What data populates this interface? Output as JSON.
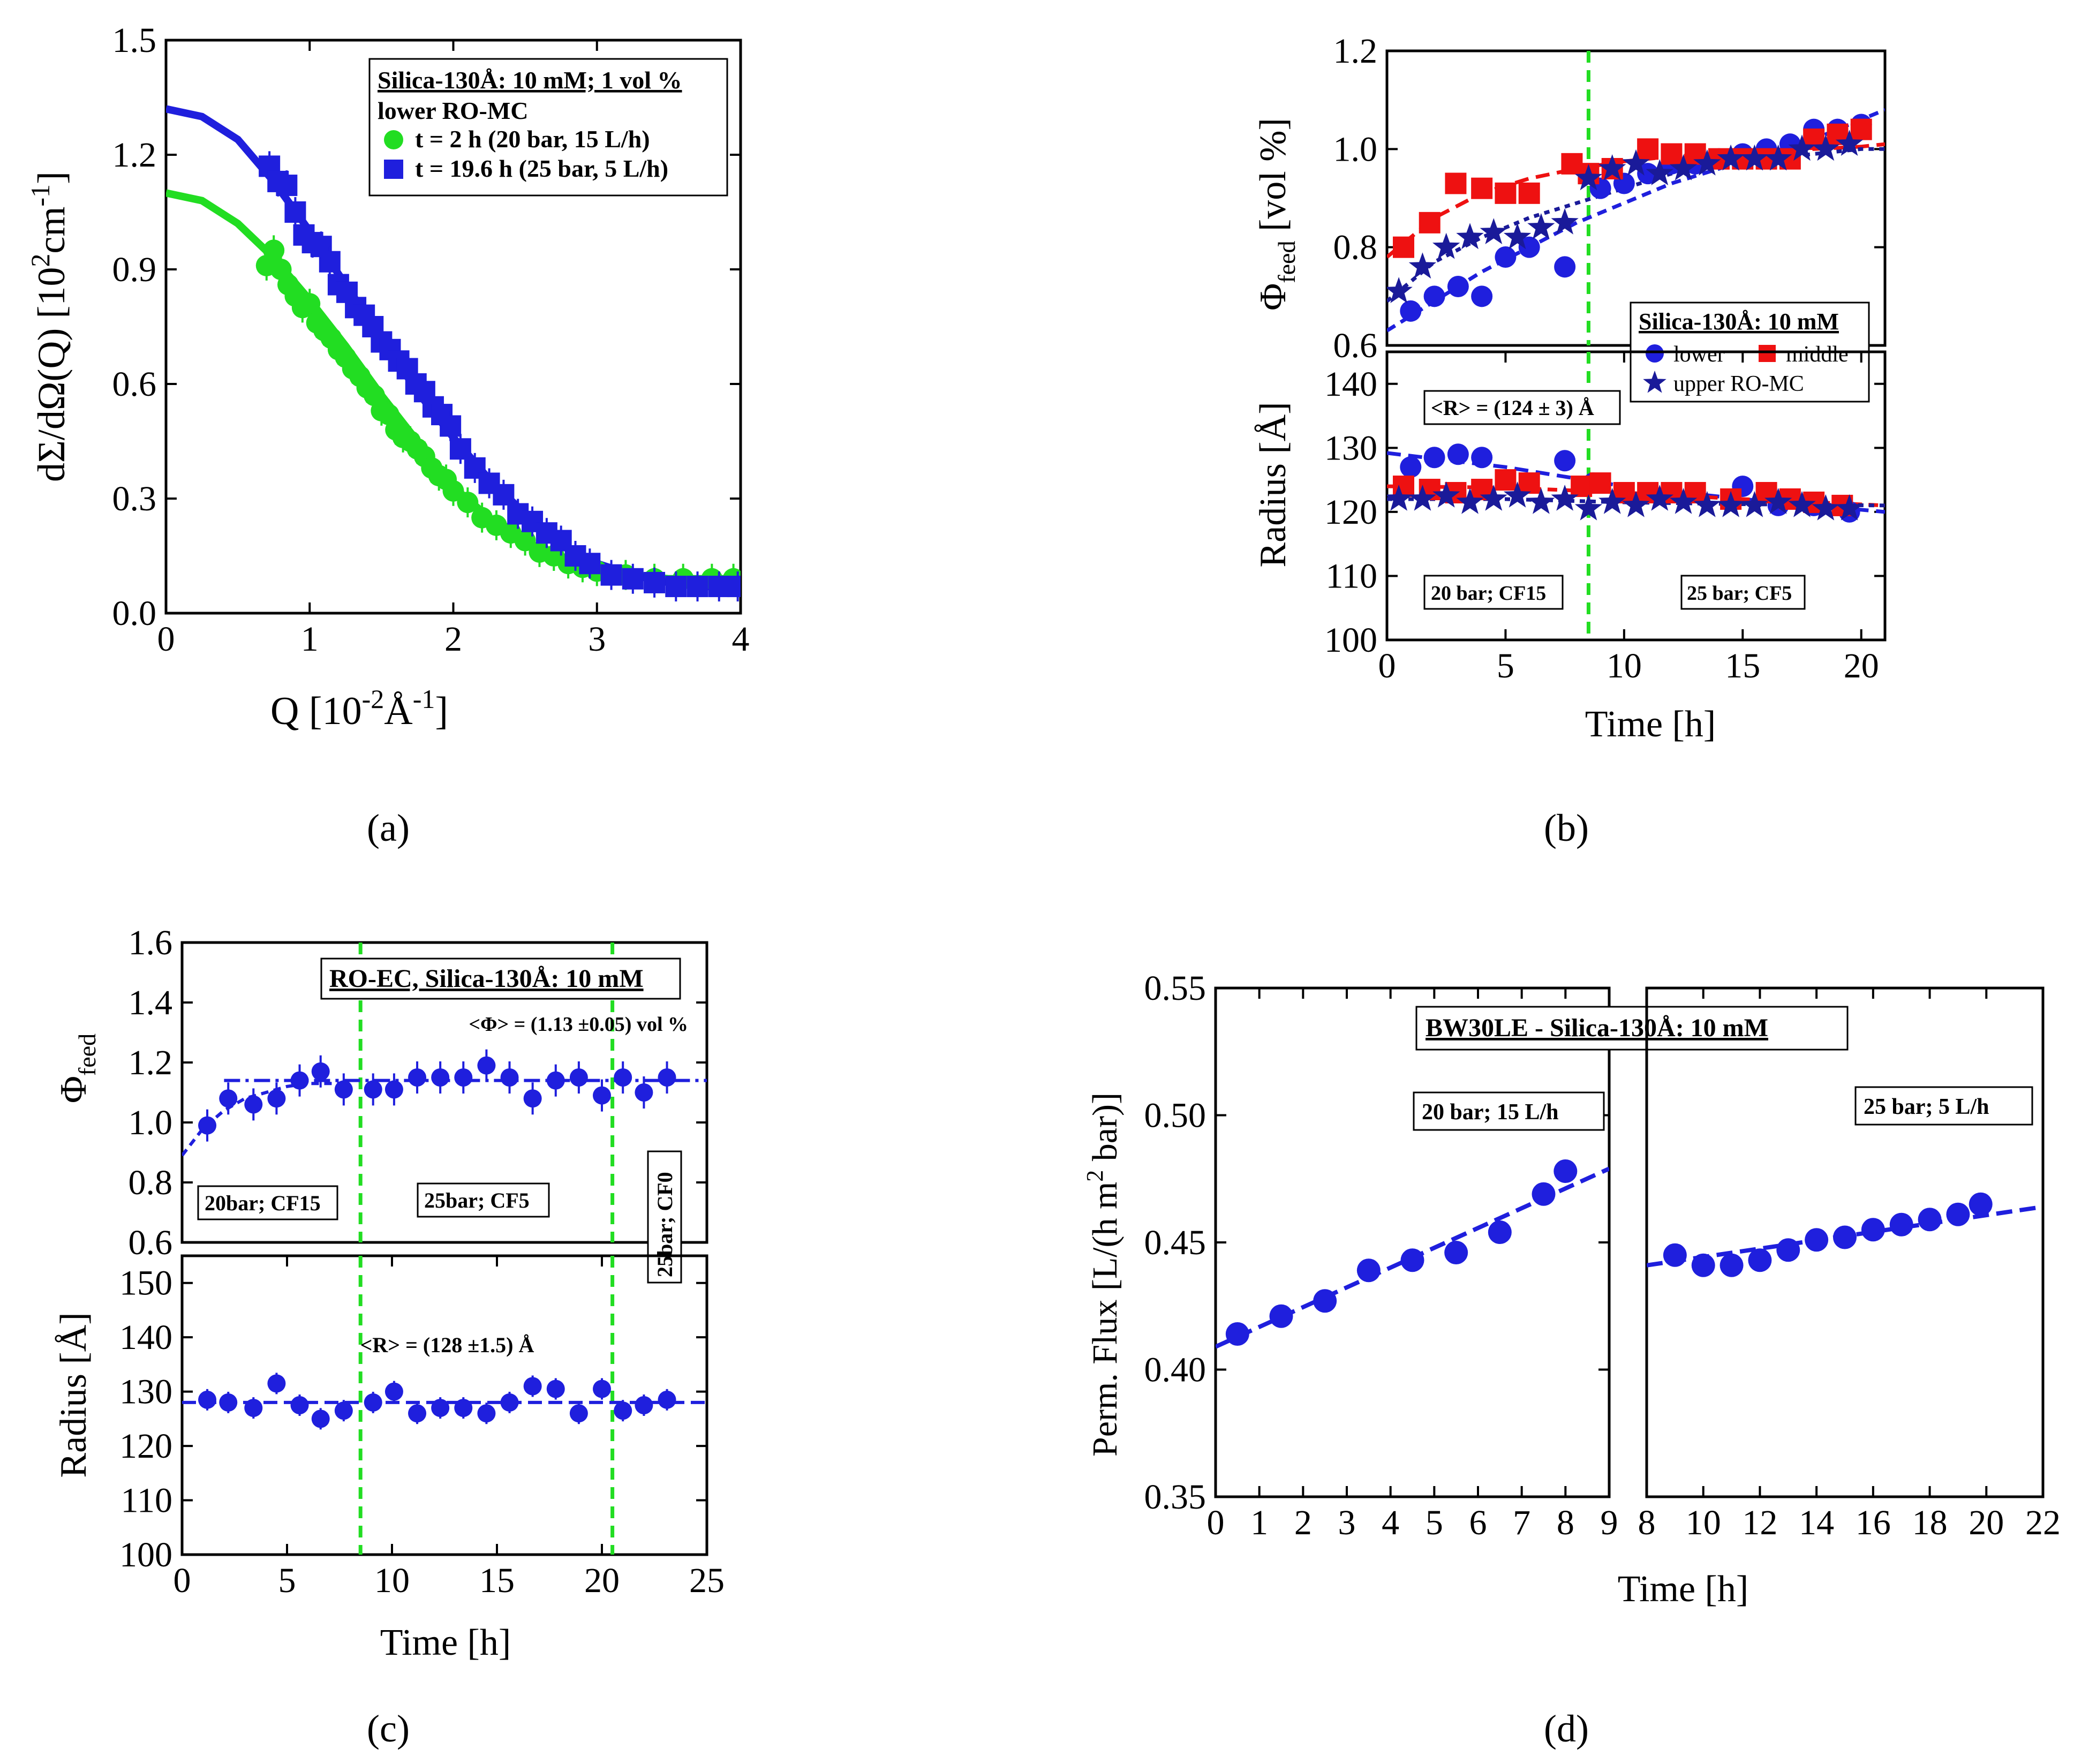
{
  "chart_data": [
    {
      "id": "a",
      "panel_label": "a",
      "type": "scatter",
      "xlabel": "Q [10^-2 Å^-1]",
      "ylabel": "dΣ/dΩ(Q) [10^2 cm^-1]",
      "xlim": [
        0,
        4
      ],
      "ylim": [
        0,
        1.5
      ],
      "xticks": [
        "0",
        "1",
        "2",
        "3",
        "4"
      ],
      "yticks": [
        "0.0",
        "0.3",
        "0.6",
        "0.9",
        "1.2",
        "1.5"
      ],
      "legend": {
        "title": "Silica-130Å: 10 mM; 1 vol %",
        "subtitle": "lower RO-MC",
        "entries": [
          "t =    2 h (20 bar, 15 L/h)",
          "t = 19.6 h (25 bar, 5 L/h)"
        ],
        "placement": "top-right"
      },
      "series": [
        {
          "name": "t =    2 h (20 bar, 15 L/h)",
          "color": "#22dd22",
          "marker": "circle",
          "x": [
            0.7,
            0.75,
            0.8,
            0.85,
            0.9,
            0.95,
            1.0,
            1.05,
            1.1,
            1.15,
            1.2,
            1.25,
            1.3,
            1.35,
            1.4,
            1.45,
            1.5,
            1.55,
            1.6,
            1.65,
            1.7,
            1.75,
            1.8,
            1.85,
            1.9,
            1.95,
            2.0,
            2.1,
            2.2,
            2.3,
            2.4,
            2.5,
            2.6,
            2.7,
            2.8,
            2.9,
            3.0,
            3.2,
            3.4,
            3.6,
            3.8,
            3.95
          ],
          "y": [
            0.91,
            0.95,
            0.9,
            0.86,
            0.83,
            0.8,
            0.81,
            0.76,
            0.74,
            0.72,
            0.69,
            0.67,
            0.64,
            0.62,
            0.59,
            0.57,
            0.53,
            0.52,
            0.48,
            0.46,
            0.45,
            0.43,
            0.41,
            0.38,
            0.36,
            0.35,
            0.32,
            0.29,
            0.25,
            0.23,
            0.21,
            0.19,
            0.16,
            0.15,
            0.13,
            0.12,
            0.11,
            0.1,
            0.09,
            0.09,
            0.09,
            0.09
          ]
        },
        {
          "name": "t = 19.6 h (25 bar, 5 L/h)",
          "color": "#1f1fdd",
          "marker": "square",
          "x": [
            0.72,
            0.78,
            0.84,
            0.9,
            0.96,
            1.02,
            1.08,
            1.14,
            1.2,
            1.26,
            1.32,
            1.38,
            1.44,
            1.5,
            1.56,
            1.62,
            1.68,
            1.74,
            1.8,
            1.86,
            1.92,
            1.98,
            2.05,
            2.15,
            2.25,
            2.35,
            2.45,
            2.55,
            2.65,
            2.75,
            2.85,
            2.95,
            3.1,
            3.25,
            3.4,
            3.55,
            3.7,
            3.85,
            3.98
          ],
          "y": [
            1.17,
            1.13,
            1.12,
            1.05,
            0.99,
            0.97,
            0.96,
            0.92,
            0.86,
            0.84,
            0.8,
            0.78,
            0.75,
            0.71,
            0.69,
            0.66,
            0.64,
            0.6,
            0.58,
            0.54,
            0.52,
            0.49,
            0.43,
            0.38,
            0.34,
            0.31,
            0.26,
            0.24,
            0.21,
            0.19,
            0.15,
            0.13,
            0.1,
            0.09,
            0.08,
            0.07,
            0.07,
            0.07,
            0.07
          ]
        }
      ],
      "fits": [
        {
          "color": "#22dd22",
          "x": [
            0,
            0.25,
            0.5,
            0.75,
            1.0,
            1.25,
            1.5,
            1.75,
            2.0,
            2.25,
            2.5,
            2.75,
            3.0,
            3.25,
            3.5,
            3.75,
            4.0
          ],
          "y": [
            1.1,
            1.08,
            1.02,
            0.93,
            0.82,
            0.7,
            0.57,
            0.45,
            0.33,
            0.25,
            0.18,
            0.14,
            0.11,
            0.1,
            0.09,
            0.09,
            0.09
          ]
        },
        {
          "color": "#1f1fdd",
          "x": [
            0,
            0.25,
            0.5,
            0.75,
            1.0,
            1.25,
            1.5,
            1.75,
            2.0,
            2.25,
            2.5,
            2.75,
            3.0,
            3.25,
            3.5,
            3.75,
            4.0
          ],
          "y": [
            1.32,
            1.3,
            1.24,
            1.13,
            1.0,
            0.86,
            0.72,
            0.58,
            0.46,
            0.35,
            0.26,
            0.18,
            0.13,
            0.1,
            0.08,
            0.07,
            0.07
          ]
        }
      ]
    },
    {
      "id": "b_top",
      "panel_label": "b",
      "type": "scatter",
      "ylabel": "Φ_feed [vol %]",
      "xlim": [
        0,
        21
      ],
      "ylim": [
        0.6,
        1.2
      ],
      "yticks": [
        "0.6",
        "0.8",
        "1.0",
        "1.2"
      ],
      "vline_x": 8.5,
      "legend": {
        "title": "Silica-130Å: 10 mM",
        "entries": [
          "lower",
          "middle",
          "upper RO-MC"
        ],
        "placement": "bottom-right"
      },
      "series": [
        {
          "name": "lower",
          "color": "#1f1fdd",
          "marker": "circle",
          "x": [
            1,
            2,
            3,
            4,
            5,
            6,
            7.5,
            9,
            10,
            11,
            12,
            13,
            14,
            15,
            16,
            17,
            18,
            19,
            20
          ],
          "y": [
            0.67,
            0.7,
            0.72,
            0.7,
            0.78,
            0.8,
            0.76,
            0.92,
            0.93,
            0.95,
            0.97,
            0.97,
            0.98,
            0.99,
            1.0,
            1.01,
            1.04,
            1.04,
            1.05
          ]
        },
        {
          "name": "middle",
          "color": "#ee1111",
          "marker": "square",
          "x": [
            0.7,
            1.8,
            2.9,
            4,
            5,
            6,
            7.8,
            8.5,
            9.5,
            11,
            12,
            13,
            14,
            15,
            16,
            17,
            18,
            19,
            20
          ],
          "y": [
            0.8,
            0.85,
            0.93,
            0.92,
            0.91,
            0.91,
            0.97,
            0.95,
            0.96,
            1.0,
            0.99,
            0.99,
            0.98,
            0.98,
            0.98,
            0.98,
            1.02,
            1.03,
            1.04
          ]
        },
        {
          "name": "upper RO-MC",
          "color": "#1a1a99",
          "marker": "star",
          "x": [
            0.5,
            1.5,
            2.5,
            3.5,
            4.5,
            5.5,
            6.5,
            7.5,
            8.5,
            9.5,
            10.5,
            11.5,
            12.5,
            13.5,
            14.5,
            15.5,
            16.5,
            17.5,
            18.5,
            19.5
          ],
          "y": [
            0.71,
            0.76,
            0.8,
            0.82,
            0.83,
            0.82,
            0.84,
            0.85,
            0.94,
            0.96,
            0.97,
            0.95,
            0.96,
            0.97,
            0.98,
            0.98,
            0.98,
            1.0,
            1.0,
            1.01
          ]
        }
      ],
      "fits": [
        {
          "color": "#ee1111",
          "x": [
            0,
            2,
            4,
            6,
            8,
            10,
            12,
            14,
            16,
            18,
            20,
            21
          ],
          "y": [
            0.78,
            0.86,
            0.91,
            0.94,
            0.96,
            0.975,
            0.985,
            0.99,
            0.995,
            1.0,
            1.005,
            1.01
          ]
        },
        {
          "color": "#1f1fdd",
          "x": [
            0,
            2,
            4,
            6,
            8,
            10,
            12,
            14,
            16,
            18,
            20,
            21
          ],
          "y": [
            0.63,
            0.69,
            0.75,
            0.8,
            0.85,
            0.89,
            0.93,
            0.96,
            0.99,
            1.02,
            1.06,
            1.08
          ]
        },
        {
          "color": "#1a1a99",
          "x": [
            0,
            2,
            4,
            6,
            8,
            10,
            12,
            14,
            16,
            18,
            20,
            21
          ],
          "y": [
            0.69,
            0.77,
            0.82,
            0.86,
            0.89,
            0.92,
            0.95,
            0.97,
            0.98,
            0.99,
            1.0,
            1.0
          ]
        }
      ]
    },
    {
      "id": "b_bottom",
      "type": "scatter",
      "xlabel": "Time [h]",
      "ylabel": "Radius [Å]",
      "xlim": [
        0,
        21
      ],
      "ylim": [
        100,
        145
      ],
      "xticks": [
        "0",
        "5",
        "10",
        "15",
        "20"
      ],
      "yticks": [
        "100",
        "110",
        "120",
        "130",
        "140"
      ],
      "vline_x": 8.5,
      "annotations": [
        "<R> = (124 ± 3) Å",
        "20 bar; CF15",
        "25 bar; CF5"
      ],
      "series": [
        {
          "name": "lower",
          "color": "#1f1fdd",
          "marker": "circle",
          "x": [
            1,
            2,
            3,
            4,
            7.5,
            8.7,
            15,
            16.5,
            18,
            19.5
          ],
          "y": [
            127,
            128.5,
            129,
            128.5,
            128,
            124.5,
            124,
            121,
            121,
            120
          ]
        },
        {
          "name": "middle",
          "color": "#ee1111",
          "marker": "square",
          "x": [
            0.7,
            1.8,
            2.9,
            4,
            5,
            6,
            8.2,
            9,
            10,
            11,
            12,
            13,
            14.5,
            16,
            17,
            18,
            19.2
          ],
          "y": [
            124,
            123.5,
            123,
            123.5,
            125,
            124.5,
            124,
            124.5,
            123,
            123,
            123,
            123,
            122,
            123,
            122,
            121.5,
            121
          ]
        },
        {
          "name": "upper RO-MC",
          "color": "#1a1a99",
          "marker": "star",
          "x": [
            0.5,
            1.5,
            2.5,
            3.5,
            4.5,
            5.5,
            6.5,
            7.5,
            8.5,
            9.5,
            10.5,
            11.5,
            12.5,
            13.5,
            14.5,
            15.5,
            16.5,
            17.5,
            18.5,
            19.5
          ],
          "y": [
            122,
            122,
            122.5,
            121.5,
            122,
            122.5,
            121.5,
            122,
            120.5,
            121.5,
            121,
            122,
            121.5,
            121,
            121,
            121,
            121.5,
            121,
            120.5,
            120.5
          ]
        }
      ],
      "fits": [
        {
          "color": "#1f1fdd",
          "x": [
            0,
            5,
            10,
            15,
            21
          ],
          "y": [
            129.2,
            127,
            124,
            122,
            120
          ]
        },
        {
          "color": "#ee1111",
          "x": [
            0,
            5,
            10,
            15,
            21
          ],
          "y": [
            124,
            123.8,
            123,
            122,
            121
          ]
        },
        {
          "color": "#1a1a99",
          "x": [
            0,
            5,
            10,
            15,
            21
          ],
          "y": [
            122,
            122,
            121.5,
            121.2,
            121
          ]
        }
      ]
    },
    {
      "id": "c_top",
      "panel_label": "c",
      "type": "scatter",
      "ylabel": "Φ_feed",
      "xlim": [
        0,
        25
      ],
      "ylim": [
        0.6,
        1.6
      ],
      "yticks": [
        "0.6",
        "0.8",
        "1.0",
        "1.2",
        "1.4",
        "1.6"
      ],
      "vlines_x": [
        8.5,
        20.5
      ],
      "annotations": [
        "RO-EC, Silica-130Å: 10 mM",
        "<Φ> = (1.13 ±0.05) vol %",
        "20bar; CF15",
        "25bar; CF5",
        "25bar; CF0"
      ],
      "series": [
        {
          "name": "",
          "color": "#1f1fdd",
          "marker": "circle",
          "x": [
            1.2,
            2.2,
            3.4,
            4.5,
            5.6,
            6.6,
            7.7,
            9.1,
            10.1,
            11.2,
            12.3,
            13.4,
            14.5,
            15.6,
            16.7,
            17.8,
            18.9,
            20,
            21,
            22,
            23.1
          ],
          "y": [
            0.99,
            1.08,
            1.06,
            1.08,
            1.14,
            1.17,
            1.11,
            1.11,
            1.11,
            1.15,
            1.15,
            1.15,
            1.19,
            1.15,
            1.08,
            1.14,
            1.15,
            1.09,
            1.15,
            1.1,
            1.15
          ]
        }
      ],
      "fits": [
        {
          "color": "#1f1fdd",
          "x": [
            0,
            1,
            2,
            3,
            4,
            5,
            6,
            7,
            8
          ],
          "y": [
            0.89,
            0.98,
            1.04,
            1.08,
            1.1,
            1.12,
            1.13,
            1.13,
            1.13
          ]
        },
        {
          "color": "#1f1fdd",
          "x": [
            2,
            25
          ],
          "y": [
            1.14,
            1.14
          ]
        }
      ]
    },
    {
      "id": "c_bottom",
      "type": "scatter",
      "xlabel": "Time [h]",
      "ylabel": "Radius [Å]",
      "xlim": [
        0,
        25
      ],
      "ylim": [
        100,
        155
      ],
      "xticks": [
        "0",
        "5",
        "10",
        "15",
        "20",
        "25"
      ],
      "yticks": [
        "100",
        "110",
        "120",
        "130",
        "140",
        "150"
      ],
      "vlines_x": [
        8.5,
        20.5
      ],
      "annotations": [
        "<R> = (128 ±1.5) Å"
      ],
      "series": [
        {
          "name": "",
          "color": "#1f1fdd",
          "marker": "circle",
          "x": [
            1.2,
            2.2,
            3.4,
            4.5,
            5.6,
            6.6,
            7.7,
            9.1,
            10.1,
            11.2,
            12.3,
            13.4,
            14.5,
            15.6,
            16.7,
            17.8,
            18.9,
            20,
            21,
            22,
            23.1
          ],
          "y": [
            128.5,
            128,
            127,
            131.5,
            127.5,
            125,
            126.5,
            128,
            130,
            126,
            127,
            127,
            126,
            128,
            131,
            130.5,
            126,
            130.5,
            126.5,
            127.5,
            128.5
          ]
        }
      ],
      "fits": [
        {
          "color": "#1f1fdd",
          "x": [
            0,
            25
          ],
          "y": [
            128,
            128
          ]
        }
      ]
    },
    {
      "id": "d_left",
      "panel_label": "d",
      "type": "scatter",
      "xlabel": "Time [h]",
      "ylabel": "Perm. Flux [L/(h m^2 bar)]",
      "xlim": [
        0,
        9
      ],
      "ylim": [
        0.35,
        0.55
      ],
      "xticks": [
        "0",
        "1",
        "2",
        "3",
        "4",
        "5",
        "6",
        "7",
        "8",
        "9"
      ],
      "yticks": [
        "0.35",
        "0.40",
        "0.45",
        "0.50",
        "0.55"
      ],
      "annotations": [
        "BW30LE - Silica-130Å: 10 mM",
        "20 bar; 15 L/h"
      ],
      "series": [
        {
          "name": "",
          "color": "#1f1fdd",
          "marker": "circle",
          "x": [
            0.5,
            1.5,
            2.5,
            3.5,
            4.5,
            5.5,
            6.5,
            7.5,
            8.0
          ],
          "y": [
            0.414,
            0.421,
            0.427,
            0.439,
            0.443,
            0.446,
            0.454,
            0.469,
            0.478
          ]
        }
      ],
      "fits": [
        {
          "color": "#1f1fdd",
          "x": [
            0,
            9
          ],
          "y": [
            0.409,
            0.479
          ]
        }
      ]
    },
    {
      "id": "d_right",
      "type": "scatter",
      "xlim": [
        8,
        22
      ],
      "ylim": [
        0.35,
        0.55
      ],
      "xticks": [
        "8",
        "10",
        "12",
        "14",
        "16",
        "18",
        "20",
        "22"
      ],
      "annotations": [
        "25 bar; 5 L/h"
      ],
      "series": [
        {
          "name": "",
          "color": "#1f1fdd",
          "marker": "circle",
          "x": [
            9,
            10,
            11,
            12,
            13,
            14,
            15,
            16,
            17,
            18,
            19,
            19.8
          ],
          "y": [
            0.445,
            0.441,
            0.441,
            0.443,
            0.447,
            0.451,
            0.452,
            0.455,
            0.457,
            0.459,
            0.461,
            0.465
          ]
        }
      ],
      "fits": [
        {
          "color": "#1f1fdd",
          "x": [
            8,
            22
          ],
          "y": [
            0.441,
            0.464
          ]
        }
      ]
    }
  ],
  "panel_labels": [
    "(a)",
    "(b)",
    "(c)",
    "(d)"
  ]
}
